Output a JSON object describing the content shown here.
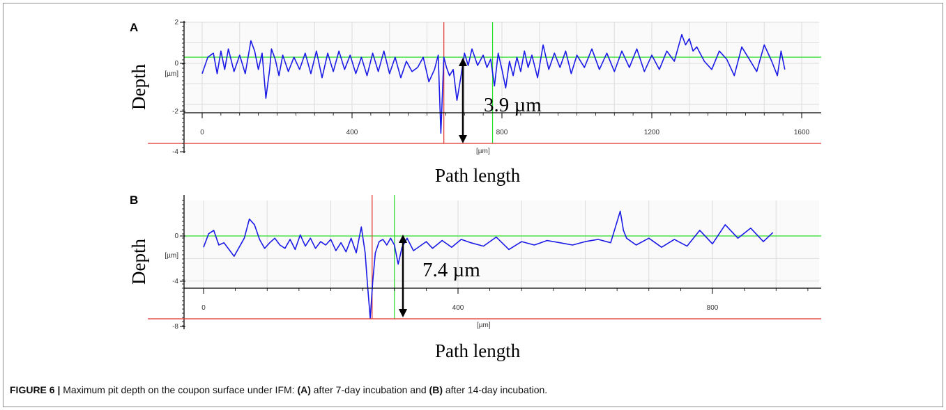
{
  "caption": {
    "label": "FIGURE 6 |",
    "text_1": " Maximum pit depth on the coupon surface under IFM: ",
    "a_marker": "(A)",
    "text_2": " after 7-day incubation and ",
    "b_marker": "(B)",
    "text_3": " after 14-day incubation."
  },
  "chart_data": [
    {
      "panel": "A",
      "type": "line",
      "xlabel": "Path length",
      "ylabel": "Depth",
      "unit_label": "[µm]",
      "x_unit_label": "[µm]",
      "xlim": [
        -70,
        1720
      ],
      "ylim": [
        -4,
        2
      ],
      "x_ticks": [
        0,
        400,
        800,
        1200,
        1600
      ],
      "y_ticks": [
        2,
        0,
        -2,
        -4
      ],
      "y_tick_labels": [
        "2",
        "0",
        "[µm]",
        "-2",
        "-4"
      ],
      "grid": true,
      "series_color": "#1a1ae6",
      "green_level_y": 0.3,
      "red_level_y": -3.3,
      "red_marker_x": 645,
      "green_marker_x": 775,
      "annotation": {
        "text": "3.9 µm",
        "x": 735,
        "y_top": 0.2,
        "y_bottom": -3.3
      },
      "series": [
        {
          "x": [
            0,
            15,
            30,
            40,
            50,
            60,
            70,
            85,
            100,
            115,
            130,
            140,
            150,
            160,
            170,
            180,
            185,
            195,
            205,
            215,
            230,
            245,
            260,
            275,
            290,
            305,
            320,
            335,
            350,
            365,
            380,
            395,
            410,
            425,
            440,
            455,
            470,
            485,
            500,
            515,
            530,
            545,
            560,
            575,
            590,
            605,
            620,
            630,
            637,
            645,
            652,
            660,
            670,
            680,
            690,
            700,
            710,
            720,
            735,
            750,
            760,
            770,
            780,
            790,
            800,
            810,
            820,
            830,
            840,
            850,
            860,
            870,
            880,
            895,
            910,
            925,
            940,
            955,
            970,
            985,
            1000,
            1020,
            1040,
            1060,
            1080,
            1100,
            1120,
            1140,
            1160,
            1180,
            1200,
            1220,
            1240,
            1260,
            1280,
            1290,
            1300,
            1310,
            1320,
            1340,
            1360,
            1380,
            1400,
            1420,
            1440,
            1460,
            1480,
            1500,
            1520,
            1535,
            1545,
            1555
          ],
          "y": [
            -0.5,
            0.3,
            0.5,
            -0.5,
            0.6,
            -0.3,
            0.7,
            -0.4,
            0.4,
            -0.5,
            1.1,
            0.6,
            -0.3,
            0.5,
            -1.7,
            -0.3,
            0.7,
            0.2,
            -0.6,
            0.4,
            -0.4,
            0.3,
            -0.3,
            0.5,
            -0.5,
            0.6,
            -0.7,
            0.5,
            -0.4,
            0.6,
            -0.3,
            0.4,
            -0.5,
            0.3,
            -0.6,
            0.5,
            -0.4,
            0.6,
            -0.5,
            0.3,
            -0.7,
            0.1,
            -0.4,
            -0.2,
            0.3,
            -0.9,
            -0.3,
            0.4,
            -3.4,
            0.3,
            -0.2,
            -0.6,
            -0.3,
            -1.8,
            -0.7,
            0.5,
            -0.1,
            0.7,
            -0.1,
            0.4,
            -0.2,
            0.2,
            -1.1,
            0.5,
            -0.3,
            -1.2,
            0.1,
            -0.6,
            0.3,
            -0.4,
            0.6,
            -0.2,
            0.4,
            -0.7,
            0.9,
            -0.3,
            0.5,
            -0.2,
            0.6,
            -0.5,
            0.4,
            -0.2,
            0.7,
            -0.3,
            0.5,
            -0.4,
            0.6,
            -0.2,
            0.7,
            -0.4,
            0.4,
            -0.3,
            0.6,
            0.1,
            1.4,
            0.9,
            1.2,
            0.6,
            0.8,
            0.1,
            -0.3,
            0.6,
            0.2,
            -0.6,
            0.8,
            0.2,
            -0.4,
            0.9,
            0.1,
            -0.6,
            0.6,
            -0.3
          ]
        }
      ]
    },
    {
      "panel": "B",
      "type": "line",
      "xlabel": "Path length",
      "ylabel": "Depth",
      "unit_label": "[µm]",
      "x_unit_label": "[µm]",
      "xlim": [
        -60,
        980
      ],
      "ylim": [
        -8,
        0
      ],
      "x_ticks": [
        0,
        400,
        800
      ],
      "y_ticks": [
        0,
        -4,
        -8
      ],
      "y_tick_labels": [
        "0",
        "[µm]",
        "-4",
        "-8"
      ],
      "grid": true,
      "series_color": "#1a1ae6",
      "green_level_y": 0,
      "red_level_y": -7.4,
      "red_marker_x": 265,
      "green_marker_x": 300,
      "annotation": {
        "text": "7.4 µm",
        "x": 313,
        "y_top": 0,
        "y_bottom": -7.4
      },
      "series": [
        {
          "x": [
            0,
            8,
            16,
            24,
            32,
            40,
            48,
            56,
            64,
            72,
            80,
            88,
            96,
            104,
            112,
            120,
            128,
            136,
            144,
            152,
            160,
            168,
            176,
            184,
            192,
            200,
            208,
            216,
            224,
            232,
            240,
            248,
            254,
            258,
            262,
            266,
            270,
            276,
            282,
            288,
            294,
            300,
            306,
            312,
            320,
            330,
            340,
            350,
            360,
            375,
            390,
            405,
            420,
            440,
            460,
            480,
            500,
            520,
            540,
            560,
            580,
            600,
            620,
            640,
            655,
            660,
            665,
            680,
            700,
            720,
            740,
            760,
            780,
            800,
            820,
            840,
            860,
            880,
            895
          ],
          "y": [
            -1.0,
            0.2,
            0.5,
            -0.8,
            -0.6,
            -1.2,
            -1.8,
            -1.0,
            -0.2,
            1.5,
            1.0,
            -0.3,
            -1.1,
            -0.6,
            -0.2,
            -0.8,
            -1.1,
            -0.3,
            -1.2,
            0.1,
            -0.9,
            -0.2,
            -1.1,
            -0.5,
            -0.8,
            -0.3,
            -1.3,
            -0.6,
            -1.4,
            -0.2,
            -1.5,
            0.8,
            -1.5,
            -4.5,
            -7.3,
            -4.0,
            -1.5,
            -0.5,
            -0.3,
            -0.8,
            -0.2,
            -0.8,
            -2.5,
            -1.0,
            -0.2,
            -1.3,
            -0.9,
            -0.5,
            -1.1,
            -0.4,
            -1.0,
            -0.3,
            -0.6,
            -0.9,
            -0.1,
            -1.2,
            -0.5,
            -0.8,
            -0.4,
            -0.6,
            -0.8,
            -0.5,
            -0.3,
            -0.6,
            2.2,
            0.5,
            -0.2,
            -0.8,
            -0.2,
            -1.0,
            -0.3,
            -0.9,
            0.5,
            -0.7,
            1.0,
            -0.2,
            0.7,
            -0.5,
            0.3
          ]
        }
      ]
    }
  ]
}
